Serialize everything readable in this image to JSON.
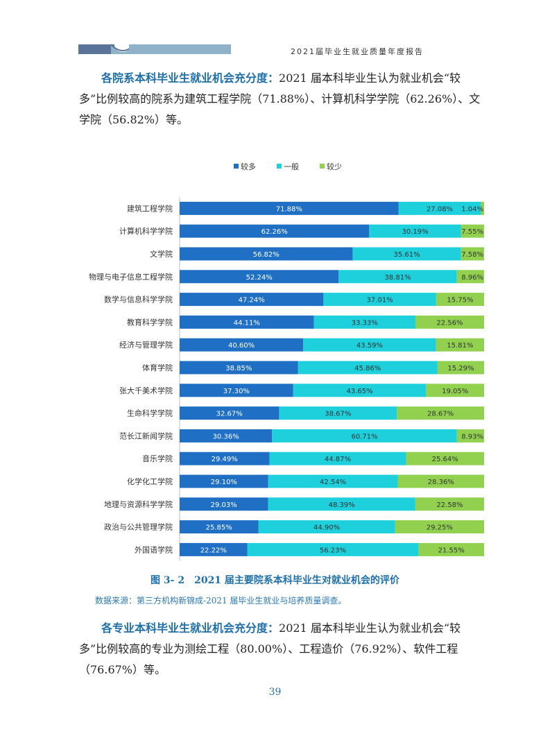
{
  "header": {
    "title": "2021届毕业生就业质量年度报告"
  },
  "paragraph1": {
    "lead": "各院系本科毕业生就业机会充分度：",
    "text": "2021 届本科毕业生认为就业机会“较多”比例较高的院系为建筑工程学院（71.88%）、计算机科学学院（62.26%）、文学院（56.82%）等。"
  },
  "chart_data": {
    "type": "bar",
    "orientation": "horizontal",
    "stacked": true,
    "percent": true,
    "legend_position": "top",
    "categories": [
      "建筑工程学院",
      "计算机科学学院",
      "文学院",
      "物理与电子信息工程学院",
      "数学与信息科学学院",
      "教育科学学院",
      "经济与管理学院",
      "体育学院",
      "张大千美术学院",
      "生命科学学院",
      "范长江新闻学院",
      "音乐学院",
      "化学化工学院",
      "地理与资源科学学院",
      "政治与公共管理学院",
      "外国语学院"
    ],
    "series": [
      {
        "name": "较多",
        "color": "#1f6fc5",
        "values": [
          71.88,
          62.26,
          56.82,
          52.24,
          47.24,
          44.11,
          40.6,
          38.85,
          37.3,
          32.67,
          30.36,
          29.49,
          29.1,
          29.03,
          25.85,
          22.22
        ]
      },
      {
        "name": "一般",
        "color": "#1ecfdc",
        "values": [
          27.08,
          30.19,
          35.61,
          38.81,
          37.01,
          33.33,
          43.59,
          45.86,
          43.65,
          38.67,
          60.71,
          44.87,
          42.54,
          48.39,
          44.9,
          56.23
        ]
      },
      {
        "name": "较少",
        "color": "#92d050",
        "values": [
          1.04,
          7.55,
          7.58,
          8.96,
          15.75,
          22.56,
          15.81,
          15.29,
          19.05,
          28.67,
          8.93,
          25.64,
          28.36,
          22.58,
          29.25,
          21.55
        ]
      }
    ],
    "value_suffix": "%"
  },
  "figure": {
    "caption": "图 3- 2　2021 届主要院系本科毕业生对就业机会的评价",
    "source": "数据来源：第三方机构新锦成-2021 届毕业生就业与培养质量调查。"
  },
  "paragraph2": {
    "lead": "各专业本科毕业生就业机会充分度：",
    "text": "2021 届本科毕业生认为就业机会“较多”比例较高的专业为测绘工程（80.00%）、工程造价（76.92%）、软件工程（76.67%）等。"
  },
  "page_number": "39"
}
